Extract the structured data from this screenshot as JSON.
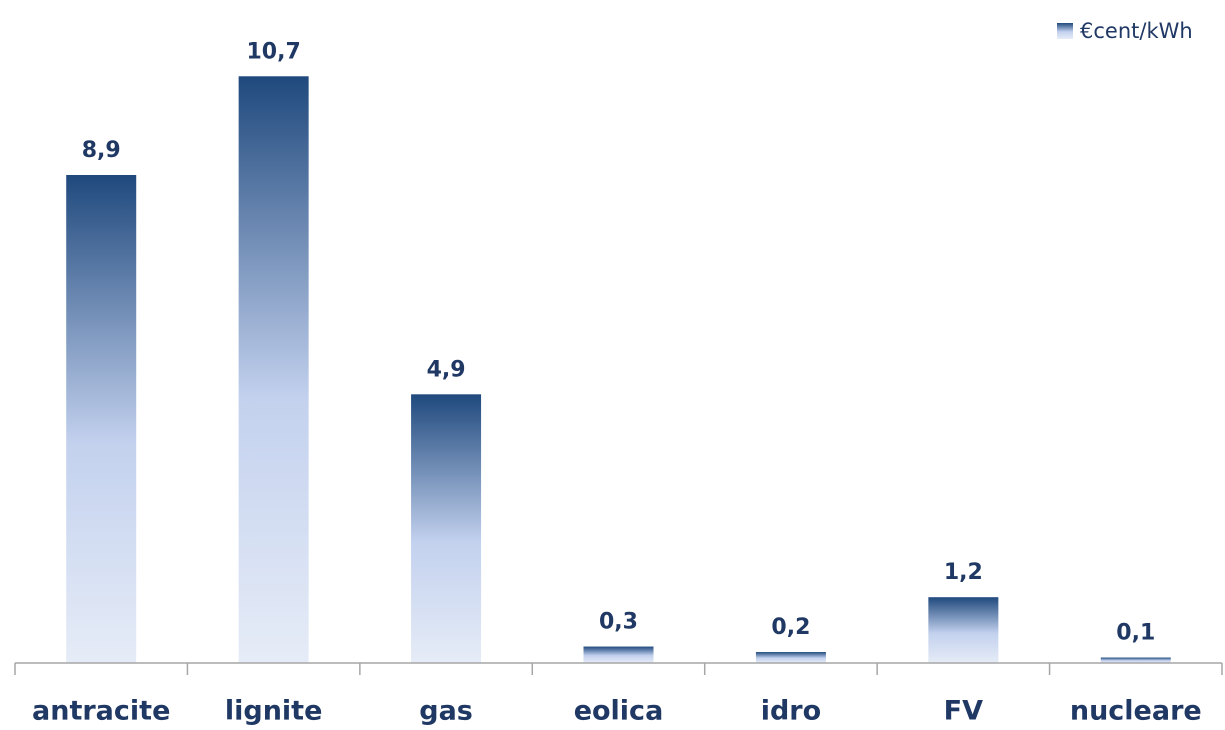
{
  "chart_data": {
    "type": "bar",
    "categories": [
      "antracite",
      "lignite",
      "gas",
      "eolica",
      "idro",
      "FV",
      "nucleare"
    ],
    "series": [
      {
        "name": "€cent/kWh",
        "color": "#1f497d",
        "values": [
          8.9,
          10.7,
          4.9,
          0.3,
          0.2,
          1.2,
          0.1
        ],
        "value_labels": [
          "8,9",
          "10,7",
          "4,9",
          "0,3",
          "0,2",
          "1,2",
          "0,1"
        ]
      }
    ],
    "ylim": [
      0,
      12
    ],
    "legend": "top-right"
  }
}
